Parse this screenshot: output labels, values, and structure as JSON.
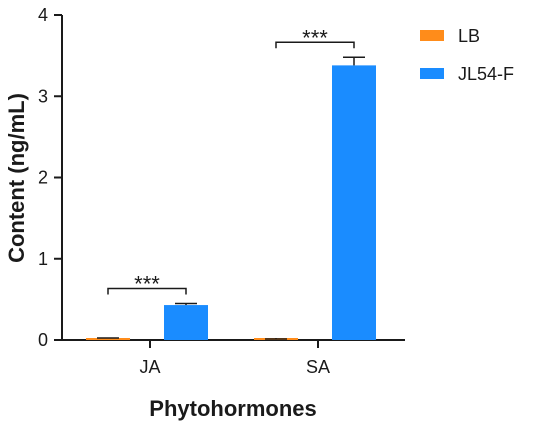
{
  "chart_data": {
    "type": "bar",
    "title": "",
    "xlabel": "Phytohormones",
    "ylabel": "Content (ng/mL)",
    "ylim": [
      0,
      4
    ],
    "yticks": [
      "0",
      "1",
      "2",
      "3",
      "4"
    ],
    "categories": [
      "JA",
      "SA"
    ],
    "series": [
      {
        "name": "LB",
        "color": "#ff8c1a",
        "values": [
          0.02,
          0.01
        ],
        "errors": [
          0.005,
          0.003
        ]
      },
      {
        "name": "JL54-F",
        "color": "#1a8cff",
        "values": [
          0.43,
          3.38
        ],
        "errors": [
          0.02,
          0.1
        ]
      }
    ],
    "annotations": [
      {
        "category": "JA",
        "text": "***"
      },
      {
        "category": "SA",
        "text": "***"
      }
    ],
    "legend_position": "top-right",
    "grid": false
  }
}
